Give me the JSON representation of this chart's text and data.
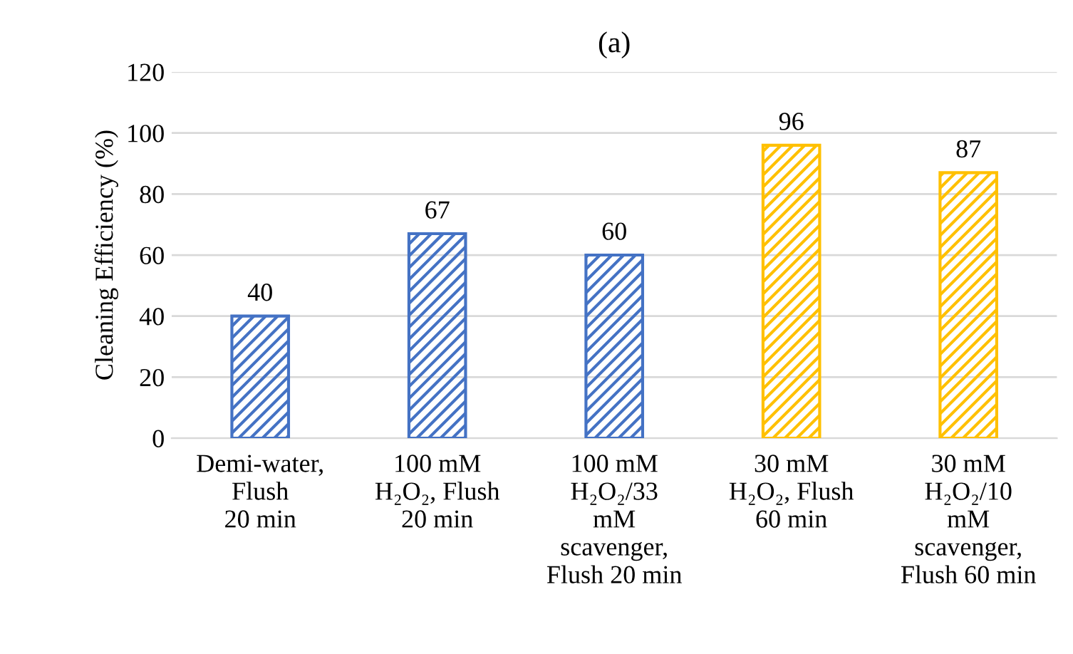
{
  "chart_data": {
    "type": "bar",
    "title": "(a)",
    "ylabel": "Cleaning Efficiency (%)",
    "categories": [
      "Demi-water,\nFlush\n20 min",
      "100 mM\nH₂O₂, Flush\n20 min",
      "100 mM\nH₂O₂/33\nmM\nscavenger,\nFlush 20 min",
      "30 mM\nH₂O₂, Flush\n60 min",
      "30 mM\nH₂O₂/10\nmM\nscavenger,\nFlush 60 min"
    ],
    "values": [
      40,
      67,
      60,
      96,
      87
    ],
    "colors": [
      "#4472c4",
      "#4472c4",
      "#4472c4",
      "#ffc000",
      "#ffc000"
    ],
    "ylim": [
      0,
      120
    ],
    "yticks": [
      0,
      20,
      40,
      60,
      80,
      100,
      120
    ],
    "grid": "y",
    "data_labels": true,
    "legend": false
  }
}
